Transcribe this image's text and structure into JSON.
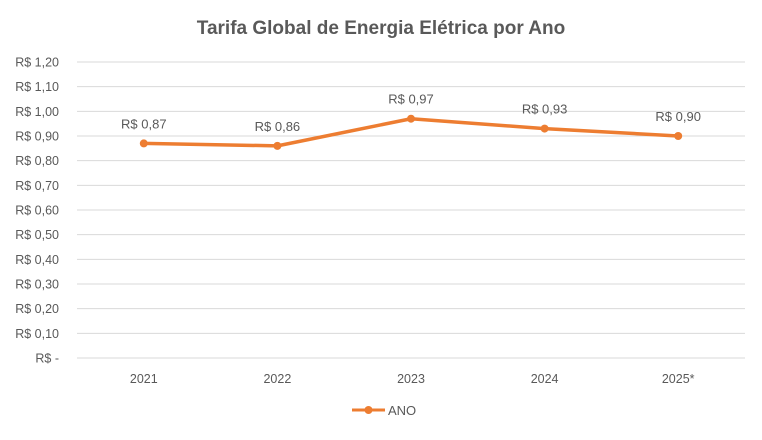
{
  "chart_data": {
    "type": "line",
    "title": "Tarifa Global de Energia Elétrica por Ano",
    "xlabel": "",
    "ylabel": "",
    "categories": [
      "2021",
      "2022",
      "2023",
      "2024",
      "2025*"
    ],
    "series": [
      {
        "name": "ANO",
        "values": [
          0.87,
          0.86,
          0.97,
          0.93,
          0.9
        ],
        "data_labels": [
          "R$ 0,87",
          "R$ 0,86",
          "R$ 0,97",
          "R$ 0,93",
          "R$ 0,90"
        ],
        "color": "#ED7D31"
      }
    ],
    "ylim": [
      0,
      1.2
    ],
    "yticks": [
      0,
      0.1,
      0.2,
      0.3,
      0.4,
      0.5,
      0.6,
      0.7,
      0.8,
      0.9,
      1.0,
      1.1,
      1.2
    ],
    "ytick_labels": [
      "R$ -",
      "R$ 0,10",
      "R$ 0,20",
      "R$ 0,30",
      "R$ 0,40",
      "R$ 0,50",
      "R$ 0,60",
      "R$ 0,70",
      "R$ 0,80",
      "R$ 0,90",
      "R$ 1,00",
      "R$ 1,10",
      "R$ 1,20"
    ],
    "grid": true,
    "legend": "bottom",
    "gridline_color": "#D9D9D9",
    "text_color": "#595959"
  }
}
